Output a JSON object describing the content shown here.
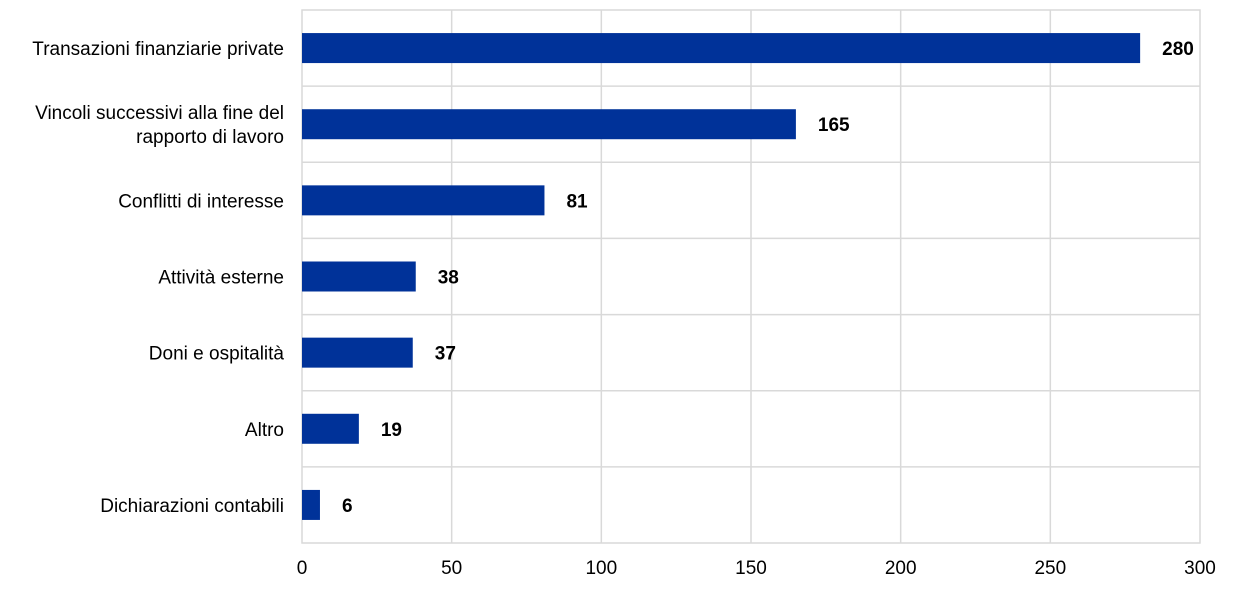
{
  "chart_data": {
    "type": "bar",
    "orientation": "horizontal",
    "categories": [
      [
        "Transazioni finanziarie private"
      ],
      [
        "Vincoli successivi alla fine del",
        "rapporto di lavoro"
      ],
      [
        "Conflitti di interesse"
      ],
      [
        "Attività esterne"
      ],
      [
        "Doni e ospitalità"
      ],
      [
        "Altro"
      ],
      [
        "Dichiarazioni contabili"
      ]
    ],
    "values": [
      280,
      165,
      81,
      38,
      37,
      19,
      6
    ],
    "xlim": [
      0,
      300
    ],
    "xticks": [
      0,
      50,
      100,
      150,
      200,
      250,
      300
    ],
    "title": "",
    "xlabel": "",
    "ylabel": "",
    "grid": true,
    "data_labels": true,
    "bar_color": "#003299"
  }
}
